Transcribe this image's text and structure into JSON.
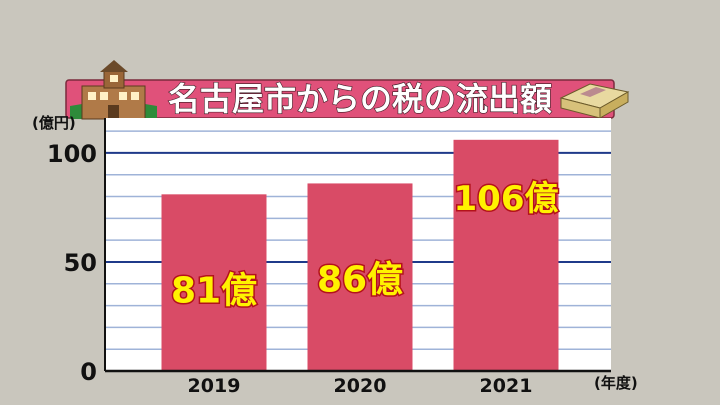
{
  "title": "名古屋市からの税の流出額",
  "chart_data": {
    "type": "bar",
    "title": "名古屋市からの税の流出額",
    "categories": [
      "2019",
      "2020",
      "2021"
    ],
    "values": [
      81,
      86,
      106
    ],
    "data_labels": [
      "81億",
      "86億",
      "106億"
    ],
    "ylabel": "(億円)",
    "xlabel": "(年度)",
    "ylim": [
      0,
      116
    ],
    "yticks": [
      "0",
      "50",
      "100"
    ],
    "ytick_values": [
      0,
      50,
      100
    ],
    "grid": true,
    "bar_color": "#d94b66"
  },
  "colors": {
    "background": "#c9c6bd",
    "plot_background": "#ffffff",
    "title_banner": "#e0517a",
    "grid_major": "#1f3a8a",
    "grid_minor": "#9fb3d8"
  },
  "icons": [
    "castle-building-icon",
    "money-bundle-icon"
  ]
}
